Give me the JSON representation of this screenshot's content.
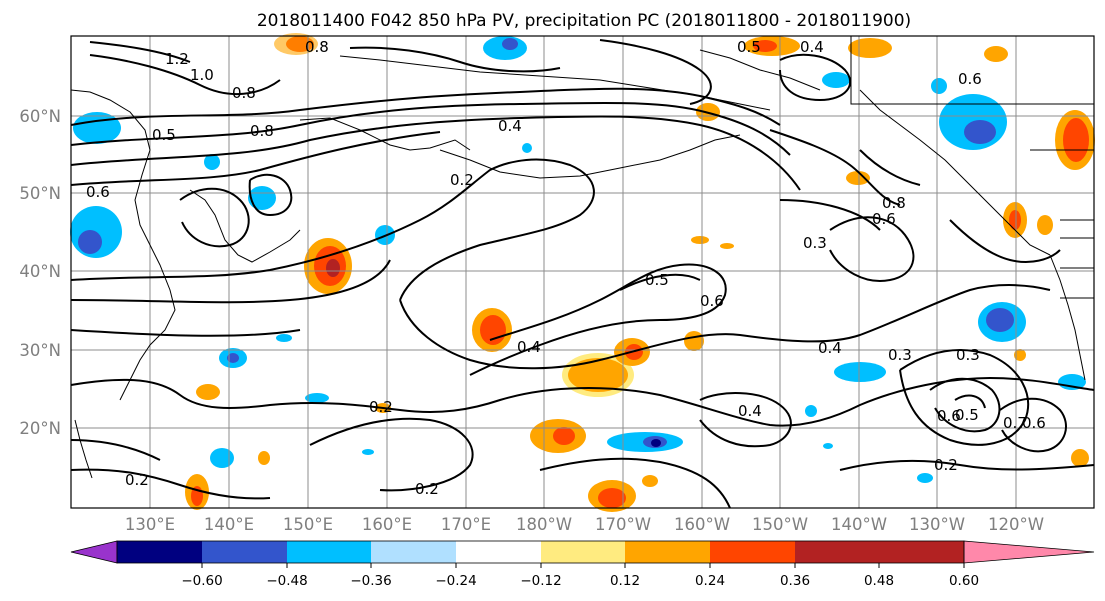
{
  "title": "2018011400 F042 850 hPa PV, precipitation PC (2018011800 - 2018011900)",
  "lat_labels": [
    "60°N",
    "50°N",
    "40°N",
    "30°N",
    "20°N"
  ],
  "lon_labels": [
    "130°E",
    "140°E",
    "150°E",
    "160°E",
    "170°E",
    "180°W",
    "170°W",
    "160°W",
    "150°W",
    "140°W",
    "130°W",
    "120°W"
  ],
  "colorbar": {
    "colors": [
      "#9933cc",
      "#000080",
      "#3355cc",
      "#00bfff",
      "#b0e0ff",
      "#ffffff",
      "#ffeb80",
      "#ffa500",
      "#ff4500",
      "#b22222",
      "#ff88aa"
    ],
    "tick_labels": [
      "−0.60",
      "−0.48",
      "−0.36",
      "−0.24",
      "−0.12",
      "0.12",
      "0.24",
      "0.36",
      "0.48",
      "0.60"
    ]
  },
  "contour_labels": [
    "1.2",
    "1.0",
    "0.8",
    "0.5",
    "0.6",
    "0.2",
    "0.4",
    "0.3",
    "0.5",
    "0.6",
    "0.4",
    "0.2",
    "0.2",
    "0.4",
    "0.6",
    "0.8",
    "0.3",
    "0.4",
    "0.3",
    "0.5",
    "0.6",
    "0.7",
    "0.6",
    "0.2",
    "0.8",
    "0.5",
    "0.4",
    "0.2",
    "0.6",
    "0.8"
  ]
}
